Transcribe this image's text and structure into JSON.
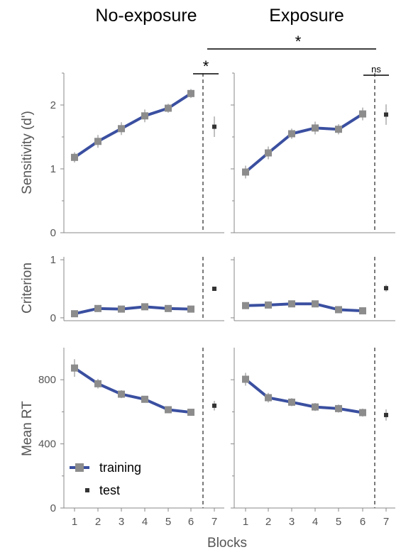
{
  "figure": {
    "column_titles": [
      "No-exposure",
      "Exposure"
    ],
    "xlabel": "Blocks",
    "x_ticks": [
      "1",
      "2",
      "3",
      "4",
      "5",
      "6",
      "7"
    ],
    "significance": {
      "between_conditions": "*",
      "no_exposure_test": "*",
      "exposure_test": "ns"
    },
    "legend": {
      "training": "training",
      "test": "test"
    },
    "colors": {
      "line": "#3a4fa0",
      "marker": "#8c8c8c",
      "test_marker": "#333333",
      "errorbar": "#aaaaaa",
      "axis": "#888888"
    }
  },
  "chart_data": [
    {
      "type": "line",
      "panel": "sensitivity-no-exposure",
      "title": "No-exposure",
      "ylabel": "Sensitivity (d')",
      "ylim": [
        0,
        2.5
      ],
      "yticks": [
        "0",
        "1",
        "2"
      ],
      "x": [
        1,
        2,
        3,
        4,
        5,
        6
      ],
      "training": [
        1.18,
        1.43,
        1.63,
        1.83,
        1.95,
        2.18
      ],
      "training_err": [
        0.08,
        0.1,
        0.1,
        0.1,
        0.07,
        0.07
      ],
      "test_x": 7,
      "test": 1.66,
      "test_err": 0.16
    },
    {
      "type": "line",
      "panel": "sensitivity-exposure",
      "title": "Exposure",
      "ylabel": "",
      "ylim": [
        0,
        2.5
      ],
      "yticks": [],
      "x": [
        1,
        2,
        3,
        4,
        5,
        6
      ],
      "training": [
        0.95,
        1.25,
        1.55,
        1.64,
        1.62,
        1.86
      ],
      "training_err": [
        0.1,
        0.1,
        0.08,
        0.1,
        0.08,
        0.1
      ],
      "test_x": 7,
      "test": 1.85,
      "test_err": 0.16
    },
    {
      "type": "line",
      "panel": "criterion-no-exposure",
      "ylabel": "Criterion",
      "ylim": [
        -0.05,
        1.05
      ],
      "yticks": [
        "0",
        "1"
      ],
      "x": [
        1,
        2,
        3,
        4,
        5,
        6
      ],
      "training": [
        0.07,
        0.16,
        0.15,
        0.19,
        0.16,
        0.15
      ],
      "training_err": [
        0.02,
        0.02,
        0.03,
        0.02,
        0.02,
        0.03
      ],
      "test_x": 7,
      "test": 0.5,
      "test_err": 0.03
    },
    {
      "type": "line",
      "panel": "criterion-exposure",
      "ylabel": "",
      "ylim": [
        -0.05,
        1.05
      ],
      "yticks": [],
      "x": [
        1,
        2,
        3,
        4,
        5,
        6
      ],
      "training": [
        0.21,
        0.22,
        0.24,
        0.24,
        0.14,
        0.12
      ],
      "training_err": [
        0.02,
        0.02,
        0.02,
        0.02,
        0.02,
        0.02
      ],
      "test_x": 7,
      "test": 0.51,
      "test_err": 0.06
    },
    {
      "type": "line",
      "panel": "rt-no-exposure",
      "ylabel": "Mean RT",
      "ylim": [
        0,
        1000
      ],
      "yticks": [
        "0",
        "400",
        "800"
      ],
      "x": [
        1,
        2,
        3,
        4,
        5,
        6
      ],
      "training": [
        873,
        775,
        710,
        678,
        613,
        597
      ],
      "training_err": [
        55,
        30,
        25,
        18,
        15,
        15
      ],
      "test_x": 7,
      "test": 638,
      "test_err": 30
    },
    {
      "type": "line",
      "panel": "rt-exposure",
      "ylabel": "",
      "ylim": [
        0,
        1000
      ],
      "yticks": [],
      "x": [
        1,
        2,
        3,
        4,
        5,
        6
      ],
      "training": [
        803,
        688,
        660,
        630,
        620,
        595
      ],
      "training_err": [
        40,
        30,
        25,
        25,
        25,
        25
      ],
      "test_x": 7,
      "test": 580,
      "test_err": 35
    }
  ]
}
